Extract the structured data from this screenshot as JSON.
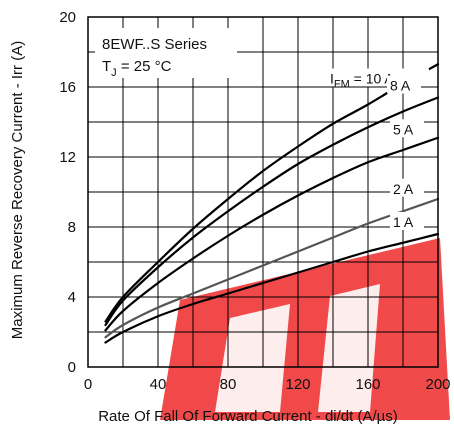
{
  "chart_data": {
    "type": "line",
    "title_lines": [
      "8EWF..S Series",
      "T",
      "J",
      " = 25 °C"
    ],
    "xlabel": "Rate Of Fall Of Forward Current - di/dt (A/µs)",
    "ylabel": "Maximum Reverse Recovery Current - Irr (A)",
    "xlim": [
      0,
      200
    ],
    "ylim": [
      0,
      20
    ],
    "x_ticks": [
      0,
      40,
      80,
      120,
      160,
      200
    ],
    "y_ticks": [
      0,
      4,
      8,
      12,
      16,
      20
    ],
    "grid": true,
    "series": [
      {
        "name": "I",
        "name_sub": "FM",
        "name_suffix": " = 10 A",
        "color": "#000000",
        "x": [
          10,
          20,
          40,
          60,
          80,
          100,
          120,
          140,
          160,
          180,
          200
        ],
        "y": [
          2.6,
          4.0,
          6.0,
          7.9,
          9.6,
          11.2,
          12.6,
          13.9,
          15.0,
          16.2,
          17.3
        ]
      },
      {
        "name": "8 A",
        "color": "#000000",
        "x": [
          10,
          20,
          40,
          60,
          80,
          100,
          120,
          140,
          160,
          180,
          200
        ],
        "y": [
          2.4,
          3.8,
          5.7,
          7.4,
          8.9,
          10.3,
          11.6,
          12.7,
          13.7,
          14.6,
          15.4
        ]
      },
      {
        "name": "5 A",
        "color": "#000000",
        "x": [
          10,
          20,
          40,
          60,
          80,
          100,
          120,
          140,
          160,
          180,
          200
        ],
        "y": [
          2.1,
          3.2,
          4.8,
          6.2,
          7.5,
          8.7,
          9.8,
          10.8,
          11.7,
          12.4,
          13.1
        ]
      },
      {
        "name": "2 A",
        "color": "#555555",
        "x": [
          10,
          20,
          40,
          60,
          80,
          100,
          120,
          140,
          160,
          180,
          200
        ],
        "y": [
          1.7,
          2.4,
          3.4,
          4.2,
          5.0,
          5.8,
          6.6,
          7.4,
          8.2,
          8.9,
          9.6
        ]
      },
      {
        "name": "1 A",
        "color": "#000000",
        "x": [
          10,
          20,
          40,
          60,
          80,
          100,
          120,
          140,
          160,
          180,
          200
        ],
        "y": [
          1.4,
          2.0,
          2.9,
          3.6,
          4.2,
          4.8,
          5.4,
          6.0,
          6.6,
          7.1,
          7.6
        ]
      }
    ]
  }
}
